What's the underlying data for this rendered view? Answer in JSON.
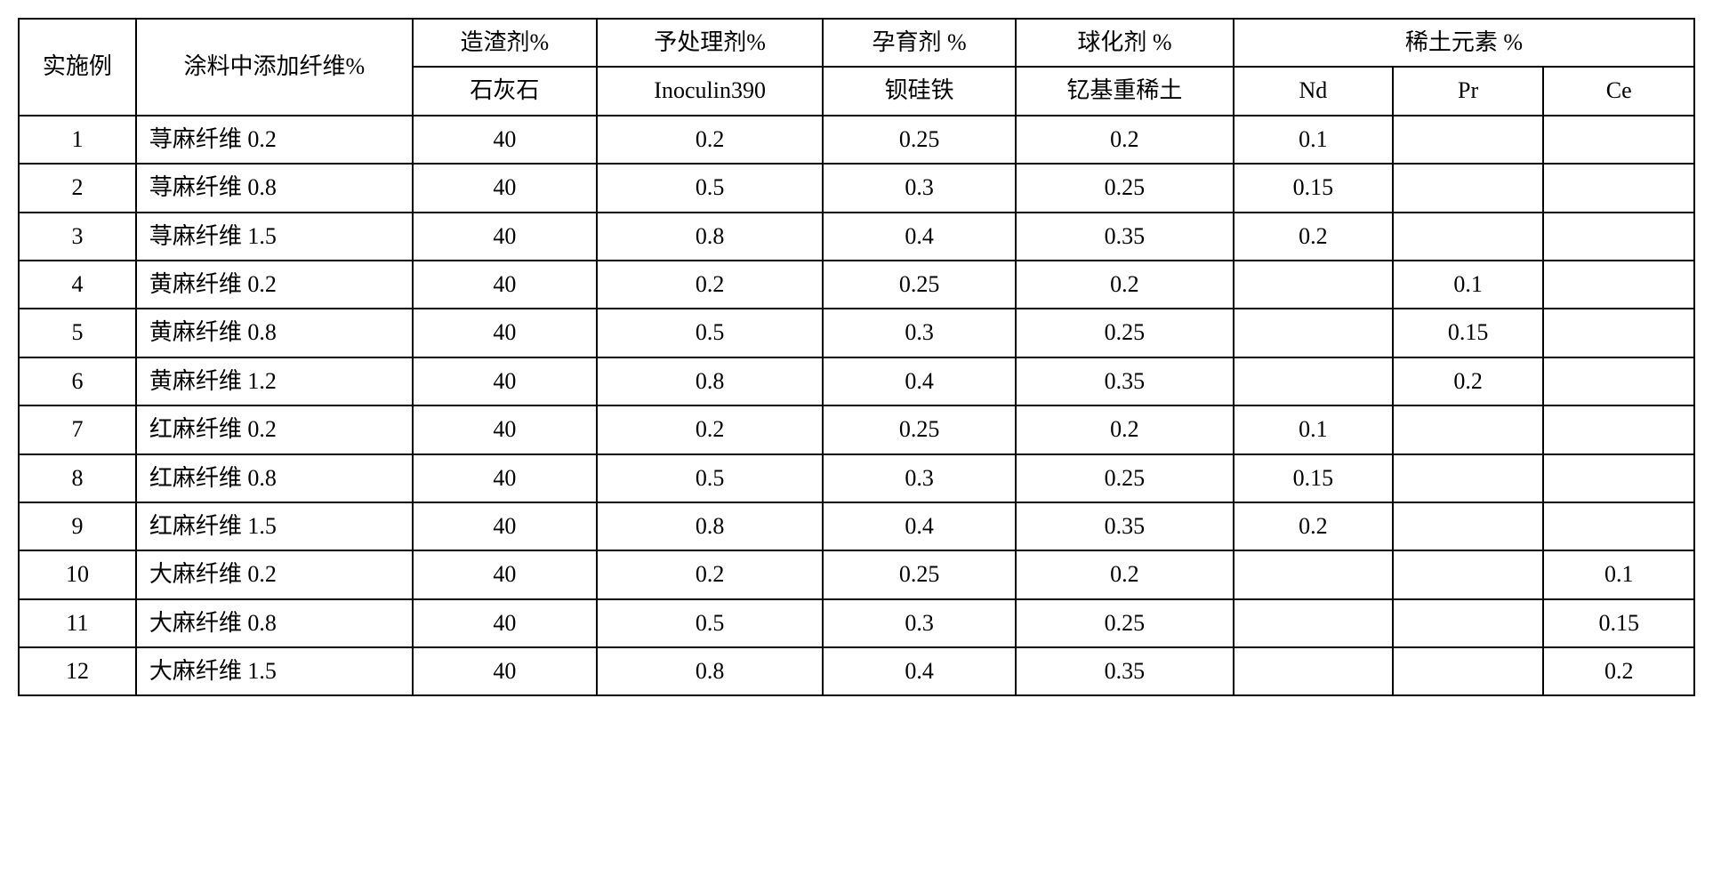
{
  "table": {
    "border_color": "#000000",
    "background_color": "#ffffff",
    "font_size_pt": 20,
    "header": {
      "r1": {
        "ex": "实施例",
        "fiber": "涂料中添加纤维%",
        "slag": "造渣剂%",
        "pre": "予处理剂%",
        "inoc": "孕育剂 %",
        "sph": "球化剂 %",
        "rare": "稀土元素 %"
      },
      "r2": {
        "slag": "石灰石",
        "pre": "Inoculin390",
        "inoc": "钡硅铁",
        "sph": "钇基重稀土",
        "nd": "Nd",
        "pr": "Pr",
        "ce": "Ce"
      }
    },
    "rows": [
      {
        "ex": "1",
        "fiber": "荨麻纤维 0.2",
        "slag": "40",
        "pre": "0.2",
        "inoc": "0.25",
        "sph": "0.2",
        "nd": "0.1",
        "pr": "",
        "ce": ""
      },
      {
        "ex": "2",
        "fiber": "荨麻纤维 0.8",
        "slag": "40",
        "pre": "0.5",
        "inoc": "0.3",
        "sph": "0.25",
        "nd": "0.15",
        "pr": "",
        "ce": ""
      },
      {
        "ex": "3",
        "fiber": "荨麻纤维 1.5",
        "slag": "40",
        "pre": "0.8",
        "inoc": "0.4",
        "sph": "0.35",
        "nd": "0.2",
        "pr": "",
        "ce": ""
      },
      {
        "ex": "4",
        "fiber": "黄麻纤维 0.2",
        "slag": "40",
        "pre": "0.2",
        "inoc": "0.25",
        "sph": "0.2",
        "nd": "",
        "pr": "0.1",
        "ce": ""
      },
      {
        "ex": "5",
        "fiber": "黄麻纤维 0.8",
        "slag": "40",
        "pre": "0.5",
        "inoc": "0.3",
        "sph": "0.25",
        "nd": "",
        "pr": "0.15",
        "ce": ""
      },
      {
        "ex": "6",
        "fiber": "黄麻纤维 1.2",
        "slag": "40",
        "pre": "0.8",
        "inoc": "0.4",
        "sph": "0.35",
        "nd": "",
        "pr": "0.2",
        "ce": ""
      },
      {
        "ex": "7",
        "fiber": "红麻纤维 0.2",
        "slag": "40",
        "pre": "0.2",
        "inoc": "0.25",
        "sph": "0.2",
        "nd": "0.1",
        "pr": "",
        "ce": ""
      },
      {
        "ex": "8",
        "fiber": "红麻纤维 0.8",
        "slag": "40",
        "pre": "0.5",
        "inoc": "0.3",
        "sph": "0.25",
        "nd": "0.15",
        "pr": "",
        "ce": ""
      },
      {
        "ex": "9",
        "fiber": "红麻纤维 1.5",
        "slag": "40",
        "pre": "0.8",
        "inoc": "0.4",
        "sph": "0.35",
        "nd": "0.2",
        "pr": "",
        "ce": ""
      },
      {
        "ex": "10",
        "fiber": "大麻纤维 0.2",
        "slag": "40",
        "pre": "0.2",
        "inoc": "0.25",
        "sph": "0.2",
        "nd": "",
        "pr": "",
        "ce": "0.1"
      },
      {
        "ex": "11",
        "fiber": "大麻纤维 0.8",
        "slag": "40",
        "pre": "0.5",
        "inoc": "0.3",
        "sph": "0.25",
        "nd": "",
        "pr": "",
        "ce": "0.15"
      },
      {
        "ex": "12",
        "fiber": "大麻纤维 1.5",
        "slag": "40",
        "pre": "0.8",
        "inoc": "0.4",
        "sph": "0.35",
        "nd": "",
        "pr": "",
        "ce": "0.2"
      }
    ]
  }
}
